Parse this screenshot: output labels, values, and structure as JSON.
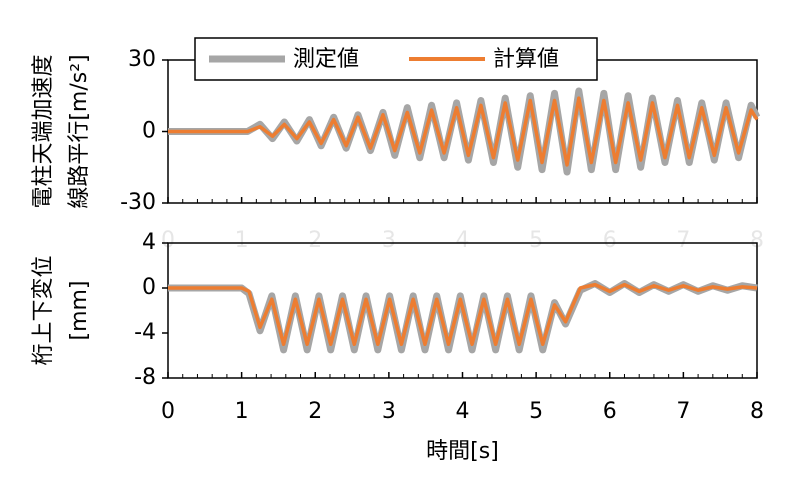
{
  "chart_data": [
    {
      "type": "line",
      "ylabel": [
        "電柱天端加速度",
        "線路平行[m/s²]"
      ],
      "x": [
        0,
        1.0,
        1.08,
        1.25,
        1.42,
        1.58,
        1.75,
        1.92,
        2.08,
        2.25,
        2.42,
        2.58,
        2.75,
        2.92,
        3.08,
        3.25,
        3.42,
        3.58,
        3.75,
        3.92,
        4.08,
        4.25,
        4.42,
        4.58,
        4.75,
        4.92,
        5.08,
        5.25,
        5.42,
        5.58,
        5.75,
        5.92,
        6.08,
        6.25,
        6.42,
        6.58,
        6.75,
        6.92,
        7.08,
        7.25,
        7.42,
        7.58,
        7.75,
        7.92,
        8.0
      ],
      "series": [
        {
          "name": "測定値",
          "color": "#a6a6a6",
          "values": [
            0,
            0,
            0,
            3,
            -3,
            4,
            -4,
            5,
            -6,
            6,
            -7,
            7,
            -8,
            8,
            -10,
            10,
            -11,
            11,
            -11,
            12,
            -12,
            13,
            -13,
            14,
            -15,
            15,
            -16,
            16,
            -17,
            17,
            -16,
            16,
            -16,
            15,
            -15,
            14,
            -13,
            13,
            -13,
            12,
            -12,
            12,
            -11,
            11,
            6
          ]
        },
        {
          "name": "計算値",
          "color": "#ed7d31",
          "values": [
            0,
            0,
            0,
            2,
            -2,
            3,
            -3,
            4,
            -5,
            5,
            -6,
            6,
            -7,
            7,
            -8,
            8,
            -9,
            9,
            -9,
            10,
            -10,
            11,
            -11,
            12,
            -12,
            13,
            -13,
            13,
            -14,
            14,
            -13,
            13,
            -13,
            12,
            -12,
            12,
            -11,
            11,
            -11,
            10,
            -10,
            10,
            -9,
            9,
            5
          ]
        }
      ],
      "xlim": [
        0,
        8
      ],
      "xticks": [
        0,
        1,
        2,
        3,
        4,
        5,
        6,
        7,
        8
      ],
      "ylim": [
        -30,
        30
      ],
      "yticks": [
        -30,
        0,
        30
      ],
      "legend": "top-left"
    },
    {
      "type": "line",
      "ylabel": [
        "桁上下変位",
        "[mm]"
      ],
      "xlabel": "時間[s]",
      "x": [
        0,
        1.0,
        1.1,
        1.25,
        1.41,
        1.57,
        1.73,
        1.89,
        2.05,
        2.21,
        2.37,
        2.53,
        2.69,
        2.85,
        3.01,
        3.17,
        3.33,
        3.49,
        3.65,
        3.81,
        3.97,
        4.13,
        4.29,
        4.45,
        4.61,
        4.77,
        4.93,
        5.09,
        5.25,
        5.4,
        5.6,
        5.8,
        6.0,
        6.2,
        6.4,
        6.6,
        6.8,
        7.0,
        7.2,
        7.4,
        7.6,
        7.8,
        8.0
      ],
      "series": [
        {
          "name": "測定値",
          "color": "#a6a6a6",
          "values": [
            0,
            0,
            -0.5,
            -3.8,
            -0.7,
            -5.5,
            -0.7,
            -5.5,
            -0.7,
            -5.5,
            -0.7,
            -5.5,
            -0.7,
            -5.5,
            -0.7,
            -5.5,
            -0.7,
            -5.5,
            -0.7,
            -5.5,
            -0.7,
            -5.5,
            -0.7,
            -5.5,
            -0.7,
            -5.5,
            -0.7,
            -5.5,
            -1.3,
            -3.2,
            -0.2,
            0.4,
            -0.4,
            0.4,
            -0.4,
            0.3,
            -0.3,
            0.3,
            -0.3,
            0.2,
            -0.2,
            0.2,
            0
          ]
        },
        {
          "name": "計算値",
          "color": "#ed7d31",
          "values": [
            0,
            0,
            -0.3,
            -3.5,
            -1,
            -5,
            -1,
            -5,
            -1,
            -5,
            -1,
            -5,
            -1,
            -5,
            -1,
            -5,
            -1,
            -5,
            -1,
            -5,
            -1,
            -5,
            -1,
            -5,
            -1,
            -5,
            -1,
            -5,
            -1.5,
            -3,
            0,
            0.3,
            -0.3,
            0.3,
            -0.3,
            0.2,
            -0.2,
            0.2,
            -0.2,
            0.1,
            -0.1,
            0.1,
            0
          ]
        }
      ],
      "xlim": [
        0,
        8
      ],
      "xticks": [
        0,
        1,
        2,
        3,
        4,
        5,
        6,
        7,
        8
      ],
      "ylim": [
        -8,
        4
      ],
      "yticks": [
        -8,
        -4,
        0,
        4
      ]
    }
  ]
}
